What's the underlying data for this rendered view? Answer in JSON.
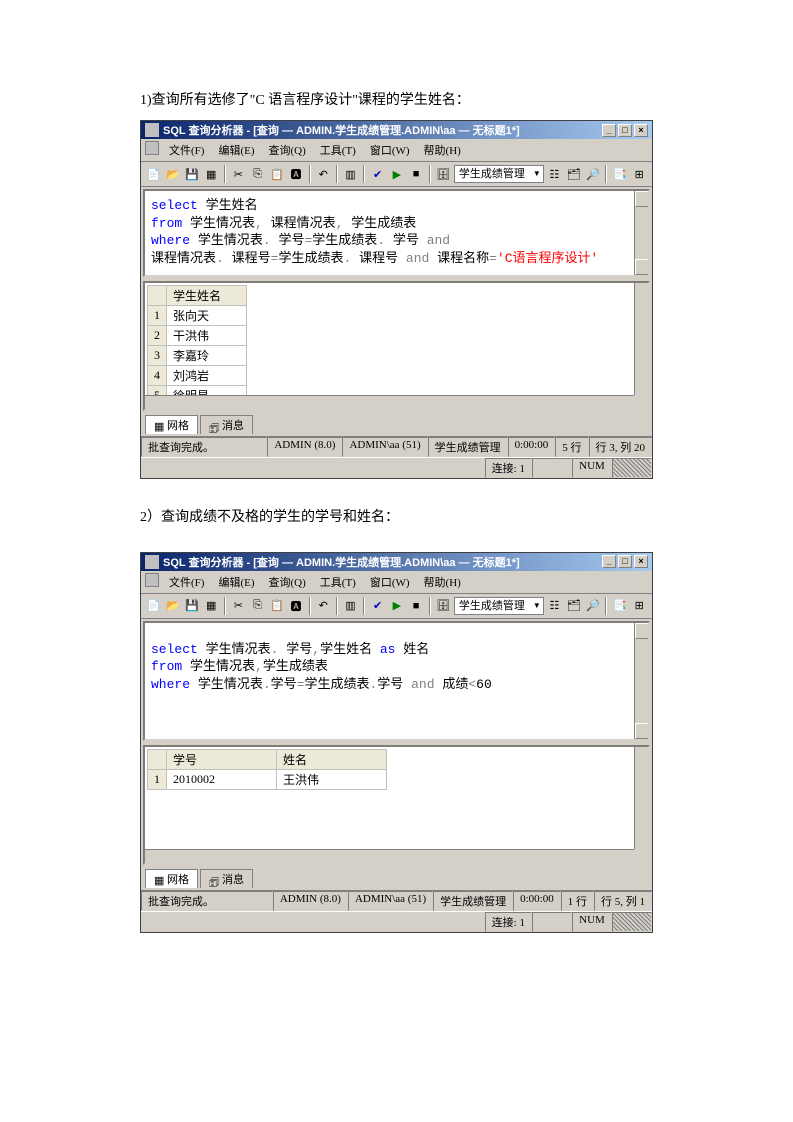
{
  "caption1": "1)查询所有选修了\"C 语言程序设计\"课程的学生姓名：",
  "caption2": "2）查询成绩不及格的学生的学号和姓名：",
  "win1": {
    "title": "SQL 查询分析器 - [查询 — ADMIN.学生成绩管理.ADMIN\\aa — 无标题1*]",
    "menu": [
      "文件(F)",
      "编辑(E)",
      "查询(Q)",
      "工具(T)",
      "窗口(W)",
      "帮助(H)"
    ],
    "dbdropdown": "学生成绩管理",
    "code": [
      {
        "parts": [
          {
            "t": "select",
            "c": "kw"
          },
          {
            "t": " 学生姓名"
          }
        ]
      },
      {
        "parts": [
          {
            "t": "from",
            "c": "kw"
          },
          {
            "t": " 学生情况表"
          },
          {
            "t": ",",
            "c": "op"
          },
          {
            "t": " 课程情况表"
          },
          {
            "t": ",",
            "c": "op"
          },
          {
            "t": " 学生成绩表"
          }
        ]
      },
      {
        "parts": [
          {
            "t": "where",
            "c": "kw"
          },
          {
            "t": " 学生情况表"
          },
          {
            "t": ".",
            "c": "op"
          },
          {
            "t": " 学号"
          },
          {
            "t": "=",
            "c": "op"
          },
          {
            "t": "学生成绩表"
          },
          {
            "t": ".",
            "c": "op"
          },
          {
            "t": " 学号 "
          },
          {
            "t": "and",
            "c": "op"
          }
        ]
      },
      {
        "parts": [
          {
            "t": "课程情况表"
          },
          {
            "t": ".",
            "c": "op"
          },
          {
            "t": " 课程号"
          },
          {
            "t": "=",
            "c": "op"
          },
          {
            "t": "学生成绩表"
          },
          {
            "t": ".",
            "c": "op"
          },
          {
            "t": " 课程号 "
          },
          {
            "t": "and",
            "c": "op"
          },
          {
            "t": " 课程名称"
          },
          {
            "t": "=",
            "c": "op"
          },
          {
            "t": "'C语言程序设计'",
            "c": "str"
          }
        ]
      }
    ],
    "result_col": "学生姓名",
    "result_rows": [
      "张向天",
      "干洪伟",
      "李嘉玲",
      "刘鸿岩",
      "徐明星"
    ],
    "tabs": {
      "grid": "网格",
      "msg": "消息"
    },
    "status": {
      "msg": "批查询完成。",
      "server": "ADMIN (8.0)",
      "user": "ADMIN\\aa (51)",
      "db": "学生成绩管理",
      "time": "0:00:00",
      "rows": "5 行",
      "pos": "行 3, 列 20"
    },
    "status2": {
      "conn": "连接: 1",
      "num": "NUM"
    }
  },
  "win2": {
    "title": "SQL 查询分析器 - [查询 — ADMIN.学生成绩管理.ADMIN\\aa — 无标题1*]",
    "menu": [
      "文件(F)",
      "编辑(E)",
      "查询(Q)",
      "工具(T)",
      "窗口(W)",
      "帮助(H)"
    ],
    "dbdropdown": "学生成绩管理",
    "code": [
      {
        "parts": [
          {
            "t": "select",
            "c": "kw"
          },
          {
            "t": " 学生情况表"
          },
          {
            "t": ".",
            "c": "op"
          },
          {
            "t": " 学号"
          },
          {
            "t": ",",
            "c": "op"
          },
          {
            "t": "学生姓名 "
          },
          {
            "t": "as",
            "c": "kw"
          },
          {
            "t": " 姓名"
          }
        ]
      },
      {
        "parts": [
          {
            "t": "from",
            "c": "kw"
          },
          {
            "t": " 学生情况表"
          },
          {
            "t": ",",
            "c": "op"
          },
          {
            "t": "学生成绩表"
          }
        ]
      },
      {
        "parts": [
          {
            "t": "where",
            "c": "kw"
          },
          {
            "t": " 学生情况表"
          },
          {
            "t": ".",
            "c": "op"
          },
          {
            "t": "学号"
          },
          {
            "t": "=",
            "c": "op"
          },
          {
            "t": "学生成绩表"
          },
          {
            "t": ".",
            "c": "op"
          },
          {
            "t": "学号 "
          },
          {
            "t": "and",
            "c": "op"
          },
          {
            "t": " 成绩"
          },
          {
            "t": "<",
            "c": "op"
          },
          {
            "t": "60"
          }
        ]
      }
    ],
    "result_cols": [
      "学号",
      "姓名"
    ],
    "result_rows": [
      [
        "2010002",
        "王洪伟"
      ]
    ],
    "tabs": {
      "grid": "网格",
      "msg": "消息"
    },
    "status": {
      "msg": "批查询完成。",
      "server": "ADMIN (8.0)",
      "user": "ADMIN\\aa (51)",
      "db": "学生成绩管理",
      "time": "0:00:00",
      "rows": "1 行",
      "pos": "行 5, 列 1"
    },
    "status2": {
      "conn": "连接: 1",
      "num": "NUM"
    }
  }
}
